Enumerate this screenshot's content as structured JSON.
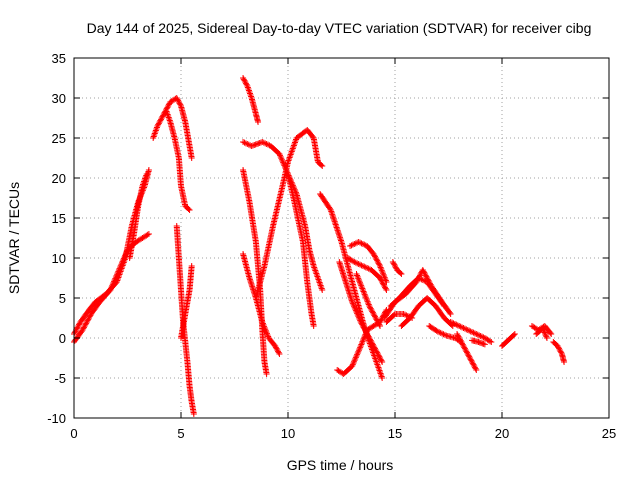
{
  "chart_data": {
    "type": "scatter",
    "title": "Day 144 of 2025, Sidereal Day-to-day VTEC variation (SDTVAR) for receiver cibg",
    "xlabel": "GPS time / hours",
    "ylabel": "SDTVAR / TECUs",
    "xlim": [
      0,
      25
    ],
    "ylim": [
      -10,
      35
    ],
    "x_ticks": [
      0,
      5,
      10,
      15,
      20,
      25
    ],
    "y_ticks": [
      -10,
      -5,
      0,
      5,
      10,
      15,
      20,
      25,
      30,
      35
    ],
    "grid": true,
    "marker": "+",
    "color": "#ff0000",
    "series": [
      {
        "name": "track-1",
        "points": [
          [
            0.0,
            0.5
          ],
          [
            0.3,
            2.0
          ],
          [
            0.7,
            3.5
          ],
          [
            1.0,
            4.5
          ],
          [
            1.5,
            5.5
          ],
          [
            2.0,
            7.0
          ],
          [
            2.4,
            10.0
          ],
          [
            2.7,
            14.0
          ],
          [
            3.0,
            17.0
          ],
          [
            3.3,
            19.0
          ],
          [
            3.5,
            21.0
          ]
        ]
      },
      {
        "name": "track-2",
        "points": [
          [
            0.0,
            -0.5
          ],
          [
            0.4,
            1.0
          ],
          [
            0.8,
            3.0
          ],
          [
            1.2,
            4.5
          ],
          [
            1.7,
            6.0
          ],
          [
            2.1,
            8.5
          ],
          [
            2.5,
            11.0
          ],
          [
            2.9,
            12.0
          ],
          [
            3.2,
            12.5
          ],
          [
            3.5,
            13.0
          ]
        ]
      },
      {
        "name": "track-3",
        "points": [
          [
            2.6,
            10.0
          ],
          [
            2.8,
            13.0
          ],
          [
            3.0,
            16.5
          ],
          [
            3.2,
            19.0
          ],
          [
            3.4,
            20.5
          ]
        ]
      },
      {
        "name": "track-4",
        "points": [
          [
            3.7,
            25.0
          ],
          [
            3.9,
            26.5
          ],
          [
            4.2,
            28.0
          ],
          [
            4.5,
            29.5
          ],
          [
            4.8,
            30.0
          ],
          [
            5.0,
            29.0
          ],
          [
            5.2,
            27.0
          ],
          [
            5.4,
            24.0
          ],
          [
            5.5,
            22.5
          ]
        ]
      },
      {
        "name": "track-5",
        "points": [
          [
            4.3,
            28.5
          ],
          [
            4.5,
            27.0
          ],
          [
            4.7,
            25.0
          ],
          [
            4.9,
            22.5
          ],
          [
            5.0,
            19.0
          ],
          [
            5.2,
            16.5
          ],
          [
            5.4,
            16.0
          ]
        ]
      },
      {
        "name": "track-6",
        "points": [
          [
            4.8,
            14.0
          ],
          [
            4.9,
            10.0
          ],
          [
            5.0,
            6.0
          ],
          [
            5.1,
            2.0
          ],
          [
            5.2,
            -0.5
          ]
        ]
      },
      {
        "name": "track-7",
        "points": [
          [
            5.0,
            0.0
          ],
          [
            5.2,
            3.0
          ],
          [
            5.4,
            6.0
          ],
          [
            5.5,
            9.0
          ]
        ]
      },
      {
        "name": "track-8",
        "points": [
          [
            5.2,
            -0.5
          ],
          [
            5.3,
            -3.0
          ],
          [
            5.4,
            -6.0
          ],
          [
            5.5,
            -8.0
          ],
          [
            5.6,
            -9.5
          ]
        ]
      },
      {
        "name": "track-9",
        "points": [
          [
            7.9,
            32.5
          ],
          [
            8.1,
            31.5
          ],
          [
            8.3,
            30.0
          ],
          [
            8.5,
            28.0
          ],
          [
            8.6,
            27.0
          ]
        ]
      },
      {
        "name": "track-10",
        "points": [
          [
            7.9,
            24.5
          ],
          [
            8.3,
            24.0
          ],
          [
            8.8,
            24.5
          ],
          [
            9.2,
            24.0
          ],
          [
            9.6,
            23.0
          ],
          [
            10.0,
            20.5
          ],
          [
            10.4,
            18.0
          ],
          [
            10.8,
            14.0
          ],
          [
            11.0,
            11.0
          ],
          [
            11.2,
            9.0
          ],
          [
            11.4,
            7.5
          ],
          [
            11.6,
            6.0
          ]
        ]
      },
      {
        "name": "track-11",
        "points": [
          [
            7.9,
            21.0
          ],
          [
            8.2,
            17.0
          ],
          [
            8.5,
            12.0
          ],
          [
            8.7,
            6.0
          ],
          [
            8.8,
            1.0
          ],
          [
            8.9,
            -3.0
          ],
          [
            9.0,
            -4.5
          ]
        ]
      },
      {
        "name": "track-12",
        "points": [
          [
            7.9,
            10.5
          ],
          [
            8.2,
            7.5
          ],
          [
            8.5,
            5.0
          ],
          [
            8.8,
            2.0
          ],
          [
            9.1,
            0.0
          ],
          [
            9.4,
            -1.0
          ],
          [
            9.6,
            -2.0
          ]
        ]
      },
      {
        "name": "track-13",
        "points": [
          [
            8.5,
            5.0
          ],
          [
            8.9,
            9.0
          ],
          [
            9.3,
            14.0
          ],
          [
            9.7,
            18.5
          ],
          [
            10.0,
            22.0
          ],
          [
            10.4,
            25.0
          ],
          [
            10.9,
            26.0
          ],
          [
            11.2,
            25.0
          ],
          [
            11.4,
            22.0
          ],
          [
            11.6,
            21.5
          ]
        ]
      },
      {
        "name": "track-14",
        "points": [
          [
            10.0,
            20.5
          ],
          [
            10.3,
            17.0
          ],
          [
            10.7,
            12.0
          ],
          [
            10.9,
            7.0
          ],
          [
            11.1,
            3.0
          ],
          [
            11.2,
            1.5
          ]
        ]
      },
      {
        "name": "track-15",
        "points": [
          [
            11.5,
            18.0
          ],
          [
            12.0,
            16.0
          ],
          [
            12.5,
            12.0
          ],
          [
            12.9,
            8.0
          ],
          [
            13.2,
            5.0
          ],
          [
            13.5,
            2.0
          ],
          [
            13.8,
            -0.5
          ],
          [
            14.0,
            -2.0
          ],
          [
            14.2,
            -3.5
          ],
          [
            14.4,
            -5.0
          ]
        ]
      },
      {
        "name": "track-16",
        "points": [
          [
            12.3,
            -4.0
          ],
          [
            12.6,
            -4.5
          ],
          [
            13.0,
            -3.5
          ],
          [
            13.4,
            -1.0
          ],
          [
            13.7,
            1.0
          ],
          [
            14.0,
            1.5
          ],
          [
            14.3,
            2.0
          ],
          [
            14.6,
            3.5
          ]
        ]
      },
      {
        "name": "track-17",
        "points": [
          [
            12.4,
            9.5
          ],
          [
            12.7,
            7.0
          ],
          [
            13.0,
            4.5
          ],
          [
            13.4,
            2.0
          ],
          [
            13.8,
            0.0
          ],
          [
            14.1,
            -1.5
          ],
          [
            14.4,
            -3.0
          ]
        ]
      },
      {
        "name": "track-18",
        "points": [
          [
            12.9,
            11.5
          ],
          [
            13.3,
            12.0
          ],
          [
            13.7,
            11.5
          ],
          [
            14.0,
            10.5
          ],
          [
            14.3,
            9.0
          ],
          [
            14.6,
            7.0
          ]
        ]
      },
      {
        "name": "track-19",
        "points": [
          [
            12.8,
            10.0
          ],
          [
            13.1,
            9.5
          ],
          [
            13.5,
            9.0
          ],
          [
            13.9,
            8.5
          ],
          [
            14.3,
            7.5
          ],
          [
            14.6,
            6.0
          ]
        ]
      },
      {
        "name": "track-20",
        "points": [
          [
            13.2,
            8.0
          ],
          [
            13.5,
            6.0
          ],
          [
            13.8,
            4.0
          ],
          [
            14.1,
            2.5
          ],
          [
            14.3,
            1.5
          ]
        ]
      },
      {
        "name": "track-21",
        "points": [
          [
            14.5,
            2.5
          ],
          [
            15.0,
            4.5
          ],
          [
            15.5,
            5.5
          ],
          [
            16.0,
            7.0
          ],
          [
            16.3,
            8.5
          ],
          [
            16.7,
            6.5
          ],
          [
            17.2,
            4.5
          ],
          [
            17.6,
            3.0
          ]
        ]
      },
      {
        "name": "track-22",
        "points": [
          [
            14.8,
            4.0
          ],
          [
            15.2,
            5.0
          ],
          [
            15.7,
            6.5
          ],
          [
            16.1,
            7.5
          ],
          [
            16.5,
            7.0
          ],
          [
            16.9,
            5.5
          ],
          [
            17.3,
            4.0
          ]
        ]
      },
      {
        "name": "track-23",
        "points": [
          [
            15.3,
            1.5
          ],
          [
            15.7,
            2.5
          ],
          [
            16.1,
            4.0
          ],
          [
            16.5,
            5.0
          ],
          [
            16.9,
            4.0
          ],
          [
            17.3,
            2.5
          ],
          [
            17.7,
            1.5
          ]
        ]
      },
      {
        "name": "track-24",
        "points": [
          [
            14.9,
            9.5
          ],
          [
            15.1,
            8.5
          ],
          [
            15.3,
            8.0
          ]
        ]
      },
      {
        "name": "track-25",
        "points": [
          [
            14.6,
            2.0
          ],
          [
            15.0,
            3.0
          ],
          [
            15.4,
            3.0
          ],
          [
            15.8,
            2.5
          ]
        ]
      },
      {
        "name": "track-26",
        "points": [
          [
            16.6,
            1.5
          ],
          [
            17.0,
            0.8
          ],
          [
            17.4,
            0.3
          ],
          [
            17.8,
            0.0
          ],
          [
            18.1,
            -0.5
          ]
        ]
      },
      {
        "name": "track-27",
        "points": [
          [
            17.6,
            2.0
          ],
          [
            18.0,
            1.5
          ],
          [
            18.4,
            1.0
          ],
          [
            18.8,
            0.5
          ],
          [
            19.2,
            0.0
          ],
          [
            19.5,
            -0.5
          ]
        ]
      },
      {
        "name": "track-28",
        "points": [
          [
            17.9,
            0.5
          ],
          [
            18.2,
            -1.0
          ],
          [
            18.5,
            -2.5
          ],
          [
            18.8,
            -4.0
          ]
        ]
      },
      {
        "name": "track-29",
        "points": [
          [
            18.6,
            -0.3
          ],
          [
            18.9,
            -0.5
          ],
          [
            19.2,
            -0.8
          ]
        ]
      },
      {
        "name": "track-30",
        "points": [
          [
            20.0,
            -1.0
          ],
          [
            20.2,
            -0.5
          ],
          [
            20.4,
            0.0
          ],
          [
            20.6,
            0.5
          ]
        ]
      },
      {
        "name": "track-31",
        "points": [
          [
            21.4,
            1.5
          ],
          [
            21.7,
            1.0
          ],
          [
            22.0,
            1.5
          ],
          [
            22.3,
            0.5
          ]
        ]
      },
      {
        "name": "track-32",
        "points": [
          [
            22.4,
            -0.5
          ],
          [
            22.6,
            -1.0
          ],
          [
            22.8,
            -2.0
          ],
          [
            22.9,
            -3.0
          ]
        ]
      },
      {
        "name": "track-33",
        "points": [
          [
            21.6,
            0.5
          ],
          [
            21.9,
            1.2
          ],
          [
            22.1,
            0.0
          ]
        ]
      }
    ]
  }
}
